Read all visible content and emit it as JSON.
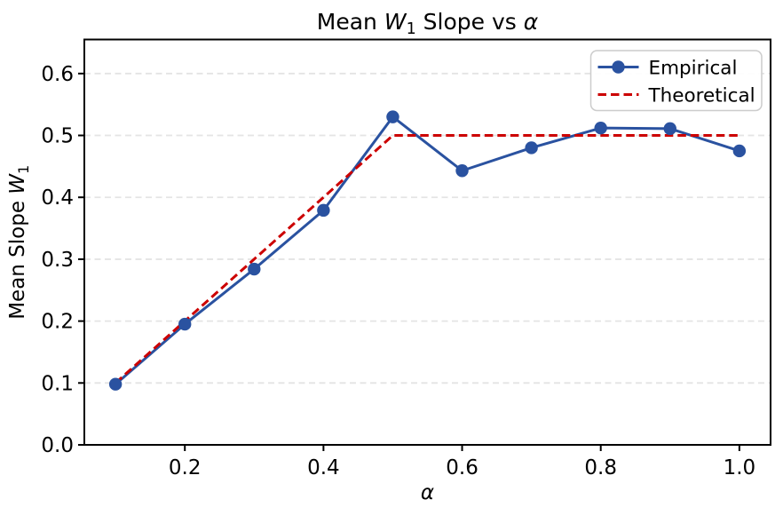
{
  "chart_data": {
    "type": "line",
    "title": "Mean W₁ Slope vs α",
    "title_parts": [
      {
        "t": "Mean ",
        "style": "normal"
      },
      {
        "t": "W",
        "style": "italic"
      },
      {
        "t": "1",
        "style": "sub"
      },
      {
        "t": " Slope vs ",
        "style": "normal"
      },
      {
        "t": "α",
        "style": "italic"
      }
    ],
    "xlabel": "α",
    "xlabel_parts": [
      {
        "t": "α",
        "style": "italic"
      }
    ],
    "ylabel": "Mean Slope W₁",
    "ylabel_parts": [
      {
        "t": "Mean Slope ",
        "style": "normal"
      },
      {
        "t": "W",
        "style": "italic"
      },
      {
        "t": "1",
        "style": "sub"
      }
    ],
    "x": [
      0.1,
      0.2,
      0.3,
      0.4,
      0.5,
      0.6,
      0.7,
      0.8,
      0.9,
      1.0
    ],
    "series": [
      {
        "name": "Empirical",
        "color": "#2a52a0",
        "line_style": "solid",
        "marker": "circle",
        "values": [
          0.098,
          0.195,
          0.284,
          0.379,
          0.53,
          0.443,
          0.48,
          0.512,
          0.511,
          0.475
        ]
      },
      {
        "name": "Theoretical",
        "color": "#cc0000",
        "line_style": "dashed",
        "marker": "none",
        "values": [
          0.1,
          0.2,
          0.3,
          0.4,
          0.5,
          0.5,
          0.5,
          0.5,
          0.5,
          0.5
        ]
      }
    ],
    "xlim": [
      0.055,
      1.045
    ],
    "ylim": [
      0.0,
      0.655
    ],
    "x_ticks": [
      0.2,
      0.4,
      0.6,
      0.8,
      1.0
    ],
    "x_tick_labels": [
      "0.2",
      "0.4",
      "0.6",
      "0.8",
      "1.0"
    ],
    "y_ticks": [
      0.0,
      0.1,
      0.2,
      0.3,
      0.4,
      0.5,
      0.6
    ],
    "y_tick_labels": [
      "0.0",
      "0.1",
      "0.2",
      "0.3",
      "0.4",
      "0.5",
      "0.6"
    ],
    "grid": "horizontal-dashed",
    "grid_color": "#e4e4e4",
    "spine_color": "#000000",
    "background": "#ffffff",
    "legend": {
      "position": "upper right",
      "entries": [
        "Empirical",
        "Theoretical"
      ],
      "border_color": "#cccccc",
      "background": "#ffffff"
    }
  }
}
